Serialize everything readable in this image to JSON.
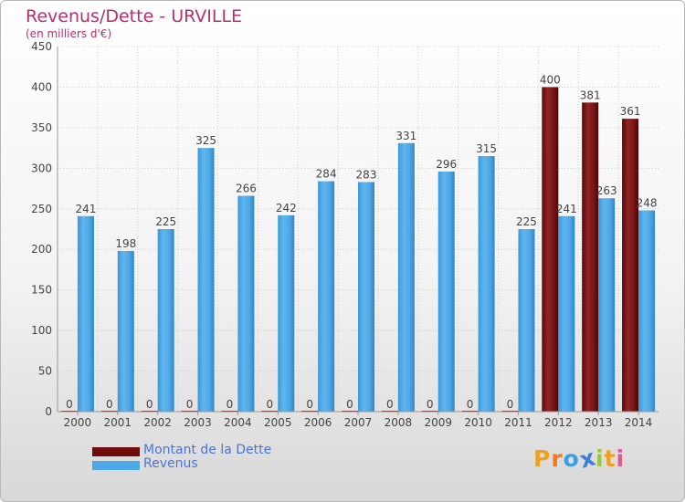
{
  "title": "Revenus/Dette - URVILLE",
  "subtitle": "(en milliers d'€)",
  "legend": [
    {
      "label": "Montant de la Dette",
      "color": "#6e0b0b"
    },
    {
      "label": "Revenus",
      "color": "#4ea7e6"
    }
  ],
  "logo": {
    "text": "Proxiti",
    "letters": [
      {
        "ch": "P",
        "color": "#f0a020"
      },
      {
        "ch": "r",
        "color": "#f07a20"
      },
      {
        "ch": "o",
        "color": "#3aa0e0"
      },
      {
        "ch": "x",
        "color": "#3a7fd8"
      },
      {
        "ch": "i",
        "color": "#9bc83a"
      },
      {
        "ch": "t",
        "color": "#f0a020"
      },
      {
        "ch": "i",
        "color": "#e05a90"
      }
    ]
  },
  "chart_data": {
    "type": "bar",
    "categories": [
      "2000",
      "2001",
      "2002",
      "2003",
      "2004",
      "2005",
      "2006",
      "2007",
      "2008",
      "2009",
      "2010",
      "2011",
      "2012",
      "2013",
      "2014"
    ],
    "series": [
      {
        "name": "Montant de la Dette",
        "color": "#6e0b0b",
        "values": [
          0,
          0,
          0,
          0,
          0,
          0,
          0,
          0,
          0,
          0,
          0,
          0,
          400,
          381,
          361
        ]
      },
      {
        "name": "Revenus",
        "color": "#4ea7e6",
        "values": [
          241,
          198,
          225,
          325,
          266,
          242,
          284,
          283,
          331,
          296,
          315,
          225,
          241,
          263,
          248
        ]
      }
    ],
    "ylim": [
      0,
      450
    ],
    "yticks": [
      0,
      50,
      100,
      150,
      200,
      250,
      300,
      350,
      400,
      450
    ],
    "grid": true,
    "legend_position": "bottom-left"
  }
}
